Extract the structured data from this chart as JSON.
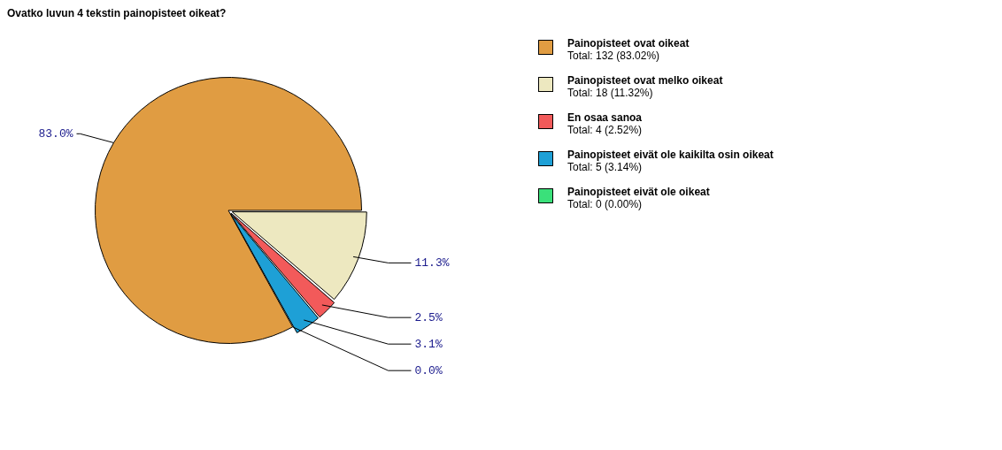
{
  "chart_data": {
    "type": "pie",
    "title": "Ovatko luvun 4 tekstin painopisteet oikeat?",
    "categories": [
      "Painopisteet ovat oikeat",
      "Painopisteet ovat melko oikeat",
      "En osaa sanoa",
      "Painopisteet eivät ole kaikilta osin oikeat",
      "Painopisteet eivät ole oikeat"
    ],
    "values": [
      83.02,
      11.32,
      2.52,
      3.14,
      0
    ],
    "colors": [
      "#e09c42",
      "#ede8c0",
      "#f25a5a",
      "#1ea0d6",
      "#3ae07a"
    ],
    "value_labels": [
      "83.0%",
      "11.3%",
      "2.5%",
      "3.1%",
      "0.0%"
    ],
    "annotations": [
      "Total: 132 (83.02%)",
      "Total: 18 (11.32%)",
      "Total: 4 (2.52%)",
      "Total: 5 (3.14%)",
      "Total: 0 (0.00%)"
    ],
    "legend": "right"
  }
}
